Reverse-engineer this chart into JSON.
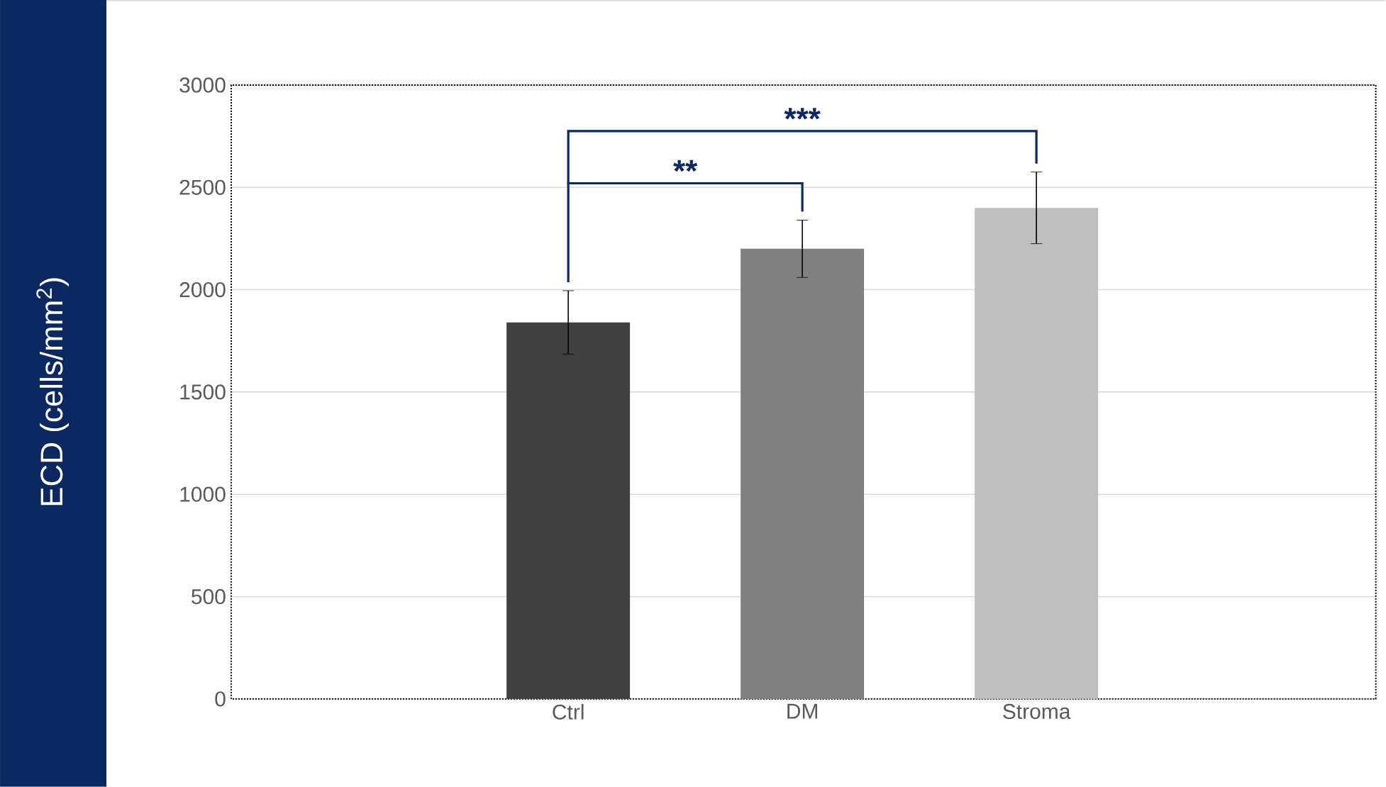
{
  "chart_data": {
    "type": "bar",
    "ylabel": "ECD (cells/mm$^{2}$)",
    "categories": [
      "Ctrl",
      "DM",
      "Stroma"
    ],
    "values": [
      1840,
      2200,
      2400
    ],
    "colors": [
      "#404040",
      "#808080",
      "#bfbfbf"
    ],
    "errors": [
      155,
      140,
      175
    ],
    "ylim": [
      0,
      3000
    ],
    "yticks": [
      0,
      500,
      1000,
      1500,
      2000,
      2500,
      3000
    ],
    "grid": "y",
    "annotations": [
      "**",
      "***"
    ]
  }
}
